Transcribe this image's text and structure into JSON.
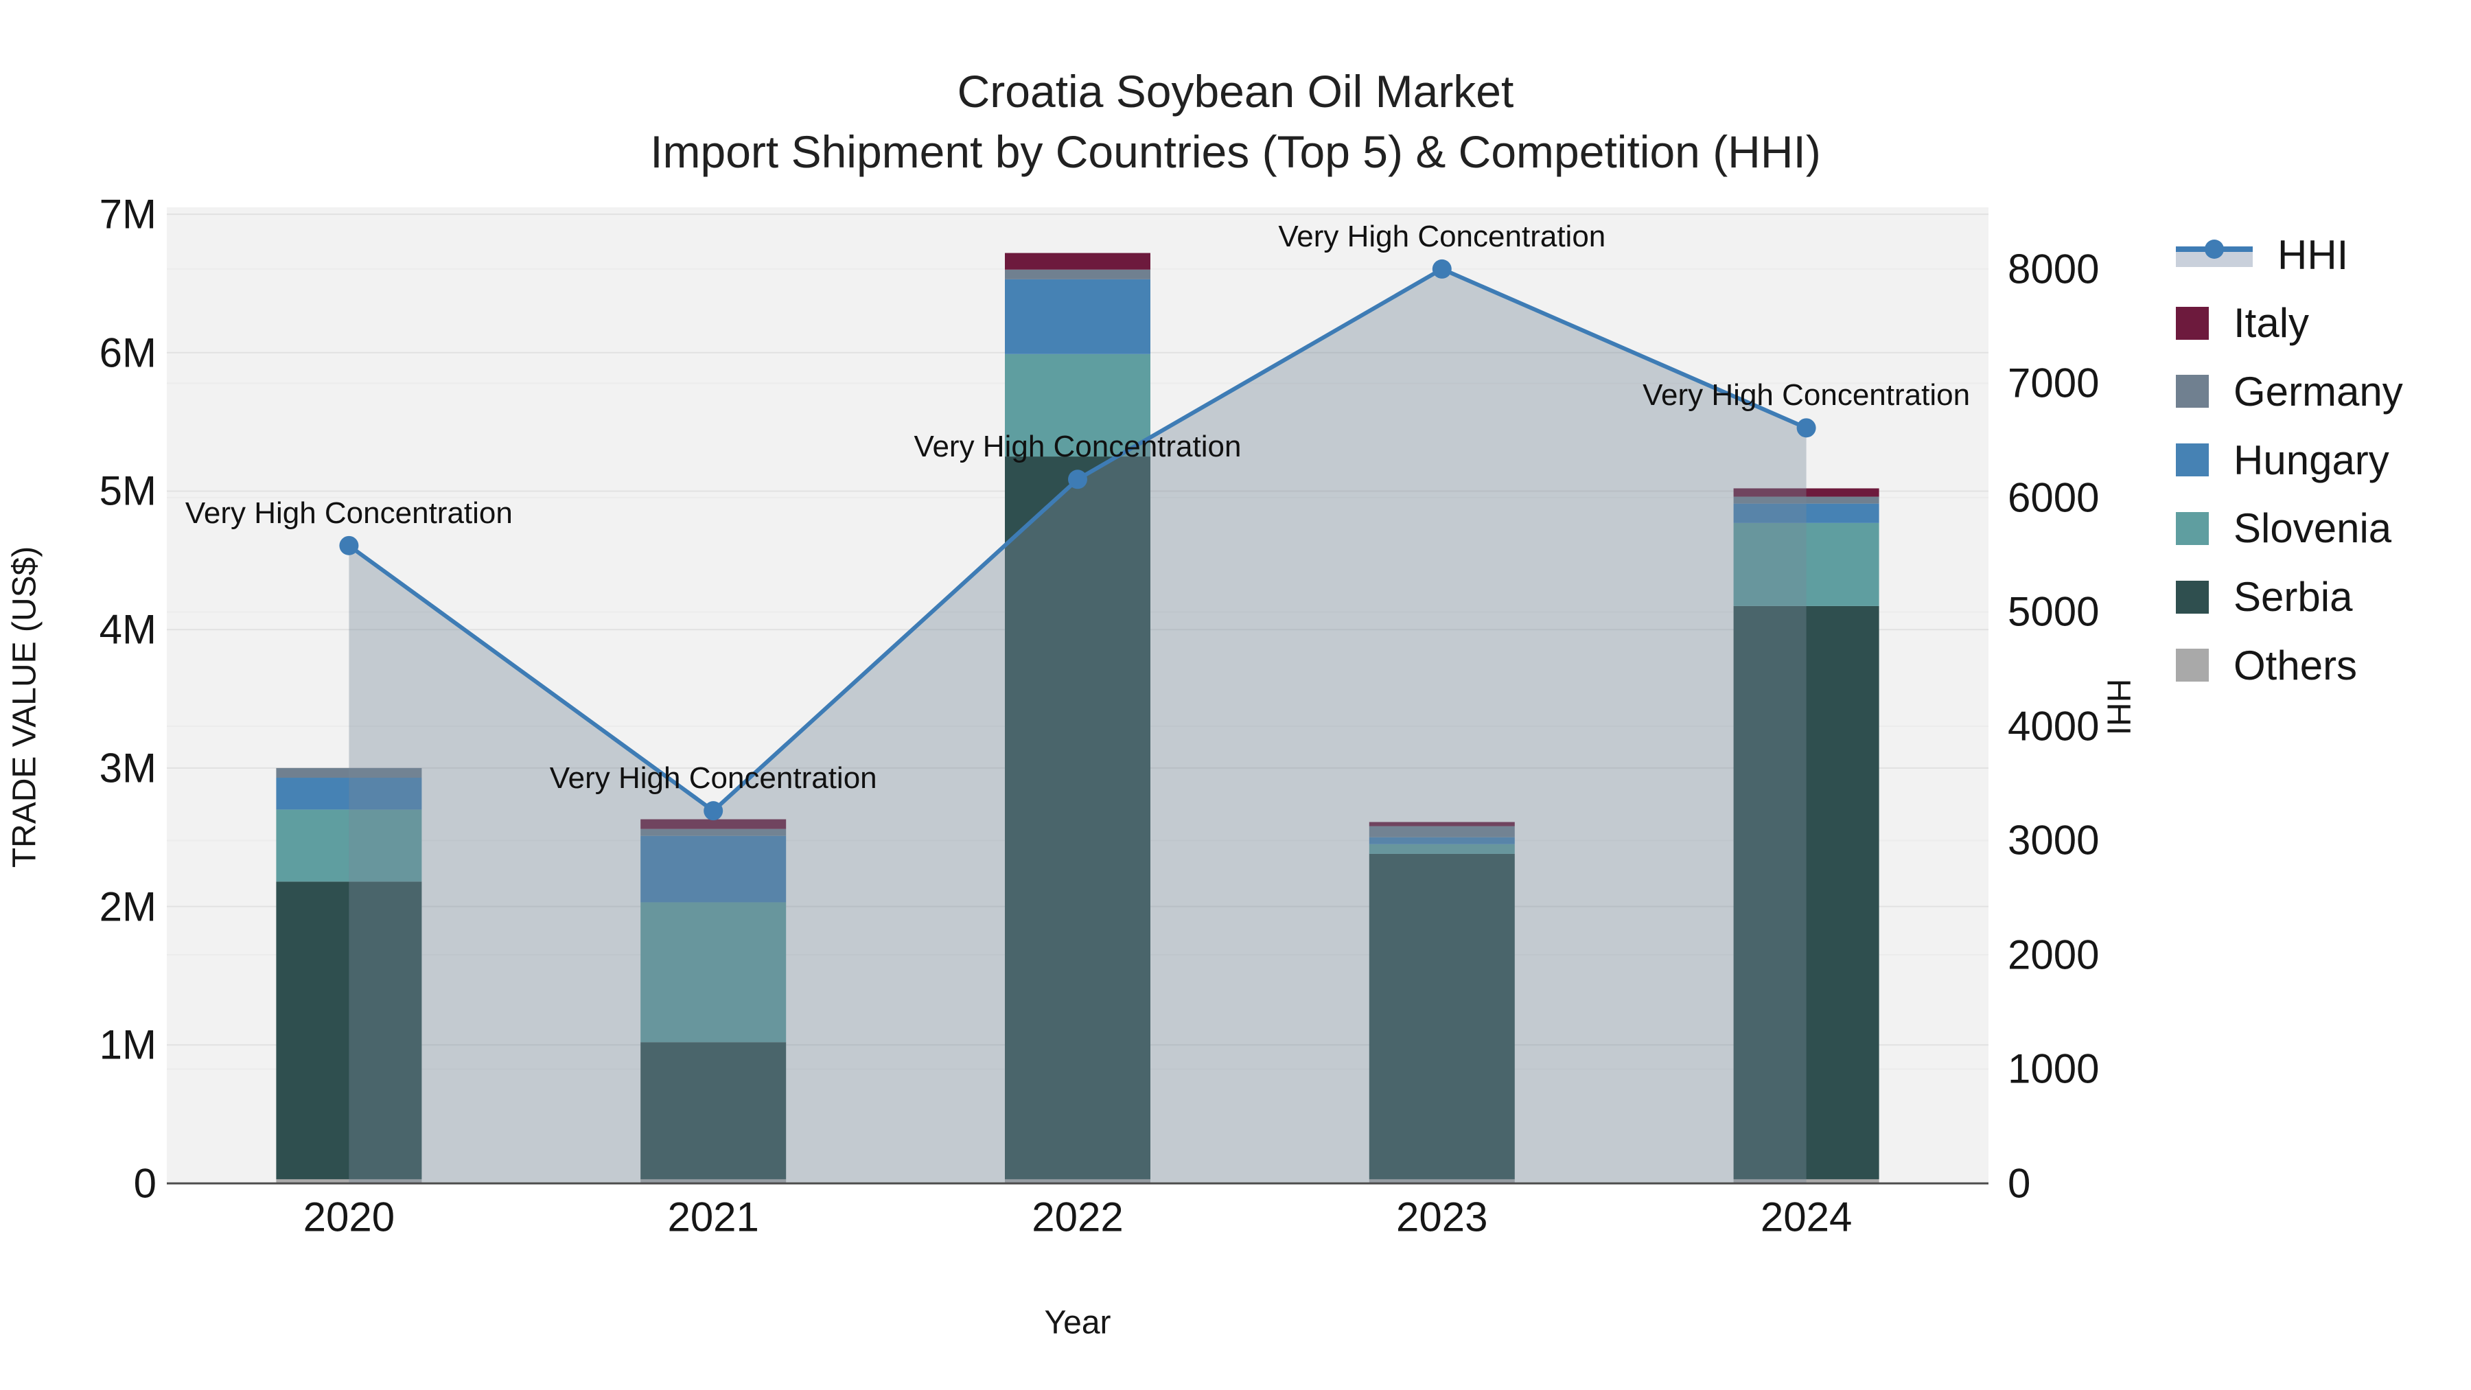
{
  "title": {
    "line1": "Croatia Soybean Oil Market",
    "line2": "Import Shipment by Countries (Top 5) & Competition (HHI)"
  },
  "axes": {
    "y_left": {
      "title": "TRADE VALUE (US$)",
      "tick_labels": [
        "0",
        "1M",
        "2M",
        "3M",
        "4M",
        "5M",
        "6M",
        "7M"
      ],
      "tick_step": 1000000,
      "max": 7050000
    },
    "y_right": {
      "title": "HHI",
      "tick_labels": [
        "0",
        "1000",
        "2000",
        "3000",
        "4000",
        "5000",
        "6000",
        "7000",
        "8000"
      ],
      "tick_step": 1000,
      "max": 8540
    },
    "x": {
      "title": "Year",
      "categories": [
        "2020",
        "2021",
        "2022",
        "2023",
        "2024"
      ]
    }
  },
  "colors": {
    "plot_bg": "#f2f2f2",
    "grid_left": "#e1e1e1",
    "grid_right": "#ececec",
    "axis_line": "#4d4d4d",
    "hhi_line": "#3e7cb5",
    "hhi_fill": "rgba(119,136,153,0.38)",
    "italy": "#6d1a3d",
    "germany": "#708090",
    "hungary": "#4682b4",
    "slovenia": "#5f9ea0",
    "serbia": "#2f4f4f",
    "others": "#a9a9a9"
  },
  "legend": [
    {
      "label": "HHI",
      "type": "line",
      "line_color": "#3e7cb5",
      "fill_color": "#c9d0db"
    },
    {
      "label": "Italy",
      "type": "square",
      "color": "#6d1a3d"
    },
    {
      "label": "Germany",
      "type": "square",
      "color": "#708090"
    },
    {
      "label": "Hungary",
      "type": "square",
      "color": "#4682b4"
    },
    {
      "label": "Slovenia",
      "type": "square",
      "color": "#5f9ea0"
    },
    {
      "label": "Serbia",
      "type": "square",
      "color": "#2f4f4f"
    },
    {
      "label": "Others",
      "type": "square",
      "color": "#a9a9a9"
    }
  ],
  "annotations": [
    {
      "year": "2020",
      "text": "Very High Concentration"
    },
    {
      "year": "2021",
      "text": "Very High Concentration"
    },
    {
      "year": "2022",
      "text": "Very High Concentration"
    },
    {
      "year": "2023",
      "text": "Very High Concentration"
    },
    {
      "year": "2024",
      "text": "Very High Concentration"
    }
  ],
  "chart_data": {
    "type": "bar",
    "subtype": "stacked-bars-with-line",
    "title": "Croatia Soybean Oil Market — Import Shipment by Countries (Top 5) & Competition (HHI)",
    "xlabel": "Year",
    "ylabel_left": "TRADE VALUE (US$)",
    "ylabel_right": "HHI",
    "categories": [
      "2020",
      "2021",
      "2022",
      "2023",
      "2024"
    ],
    "bar_series": [
      {
        "name": "Others",
        "color": "#a9a9a9",
        "values": [
          30000,
          30000,
          30000,
          30000,
          30000
        ]
      },
      {
        "name": "Serbia",
        "color": "#2f4f4f",
        "values": [
          2150000,
          990000,
          5220000,
          2350000,
          4140000
        ]
      },
      {
        "name": "Slovenia",
        "color": "#5f9ea0",
        "values": [
          520000,
          1010000,
          740000,
          70000,
          600000
        ]
      },
      {
        "name": "Hungary",
        "color": "#4682b4",
        "values": [
          230000,
          480000,
          540000,
          50000,
          140000
        ]
      },
      {
        "name": "Germany",
        "color": "#708090",
        "values": [
          70000,
          50000,
          70000,
          80000,
          50000
        ]
      },
      {
        "name": "Italy",
        "color": "#6d1a3d",
        "values": [
          0,
          70000,
          120000,
          30000,
          60000
        ]
      }
    ],
    "bar_totals": [
      3000000,
      2630000,
      6720000,
      2610000,
      5020000
    ],
    "line_series": {
      "name": "HHI",
      "color": "#3e7cb5",
      "fill": "rgba(119,136,153,0.38)",
      "values": [
        5580,
        3260,
        6160,
        8000,
        6610
      ]
    },
    "ylim_left": [
      0,
      7050000
    ],
    "ylim_right": [
      0,
      8540
    ],
    "grid": true,
    "legend_position": "right"
  }
}
